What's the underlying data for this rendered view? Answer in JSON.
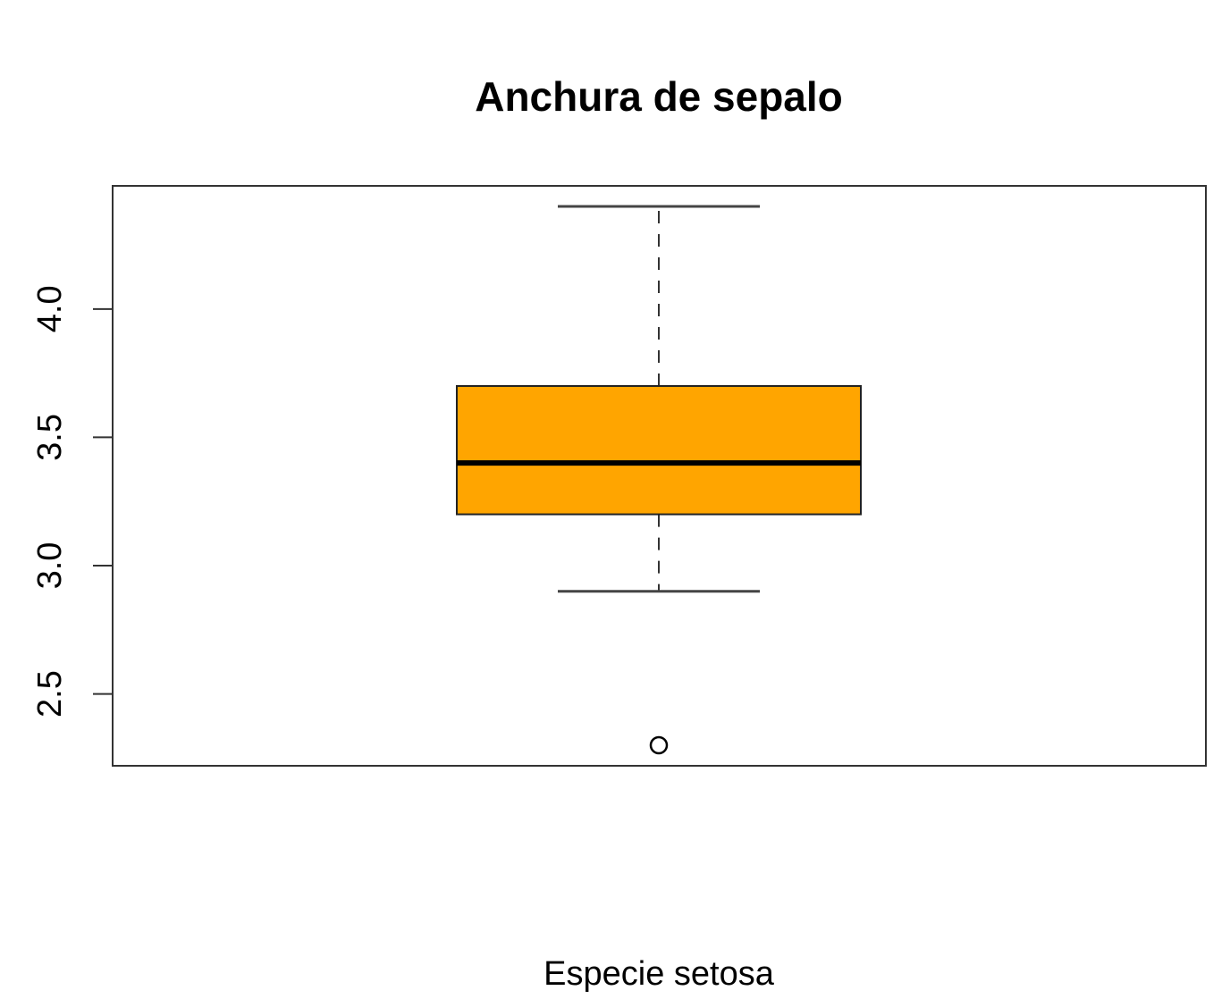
{
  "chart_data": {
    "type": "boxplot",
    "title": "Anchura de sepalo",
    "xlabel": "Especie setosa",
    "ylabel": "",
    "ylim": [
      2.22,
      4.48
    ],
    "yticks": [
      2.5,
      3.0,
      3.5,
      4.0
    ],
    "ytick_labels": [
      "2.5",
      "3.0",
      "3.5",
      "4.0"
    ],
    "box": {
      "whisker_low": 2.9,
      "q1": 3.2,
      "median": 3.4,
      "q3": 3.7,
      "whisker_high": 4.4,
      "outliers": [
        2.3
      ]
    },
    "fill_color": "#FFA500",
    "grid": false
  }
}
